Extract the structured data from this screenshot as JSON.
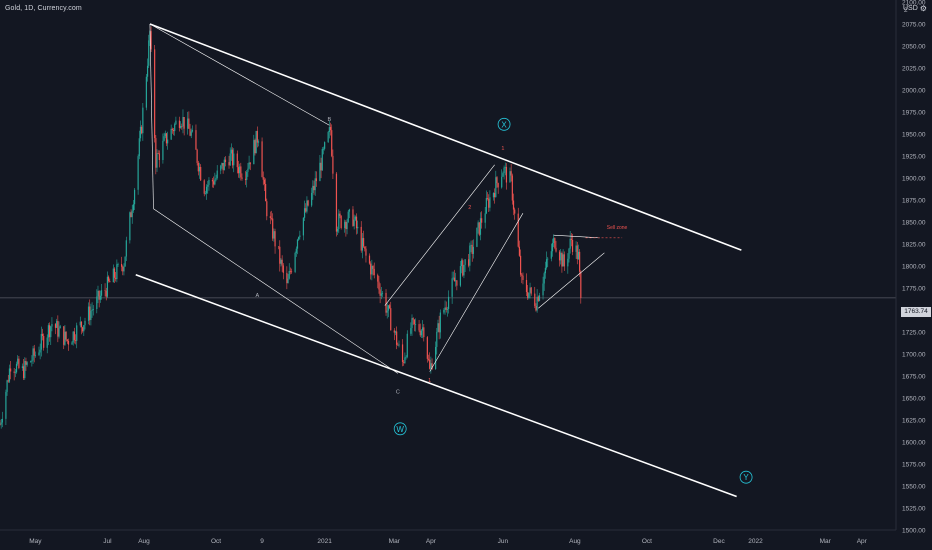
{
  "header": {
    "title": "Gold, 1D, Currency.com"
  },
  "price_axis": {
    "currency_label": "USD"
  },
  "last_price": "1763.74",
  "colors": {
    "background": "#131722",
    "up": "#26a69a",
    "down": "#ef5350",
    "text": "#b2b5be",
    "lines": "#ffffff",
    "wave_label": "#26c6da"
  },
  "chart_data": {
    "type": "candlestick",
    "title": "Gold, 1D, Currency.com",
    "y_axis": {
      "ylim": [
        1500,
        2100
      ],
      "ticks": [
        1500,
        1525,
        1550,
        1575,
        1600,
        1625,
        1650,
        1675,
        1700,
        1725,
        1750,
        1775,
        1800,
        1825,
        1850,
        1875,
        1900,
        1925,
        1950,
        1975,
        2000,
        2025,
        2050,
        2075,
        2100
      ],
      "tick_labels": [
        "1500.00",
        "1525.00",
        "1550.00",
        "1575.00",
        "1600.00",
        "1625.00",
        "1650.00",
        "1675.00",
        "1700.00",
        "1725.00",
        "1750.00",
        "1775.00",
        "1800.00",
        "1825.00",
        "1850.00",
        "1875.00",
        "1900.00",
        "1925.00",
        "1950.00",
        "1975.00",
        "2000.00",
        "2025.00",
        "2050.00",
        "2075.00",
        "2100.00"
      ],
      "top_label": "2"
    },
    "x_axis": {
      "range": [
        "2020-04-01",
        "2022-04-30"
      ],
      "ticks": [
        {
          "date": "2020-05-01",
          "label": "May"
        },
        {
          "date": "2020-07-01",
          "label": "Jul"
        },
        {
          "date": "2020-08-01",
          "label": "Aug"
        },
        {
          "date": "2020-10-01",
          "label": "Oct"
        },
        {
          "date": "2020-11-09",
          "label": "9"
        },
        {
          "date": "2021-01-01",
          "label": "2021"
        },
        {
          "date": "2021-03-01",
          "label": "Mar"
        },
        {
          "date": "2021-04-01",
          "label": "Apr"
        },
        {
          "date": "2021-06-01",
          "label": "Jun"
        },
        {
          "date": "2021-08-01",
          "label": "Aug"
        },
        {
          "date": "2021-10-01",
          "label": "Oct"
        },
        {
          "date": "2021-12-01",
          "label": "Dec"
        },
        {
          "date": "2022-01-01",
          "label": "2022"
        },
        {
          "date": "2022-03-01",
          "label": "Mar"
        },
        {
          "date": "2022-04-01",
          "label": "Apr"
        }
      ]
    },
    "price_path": [
      [
        "2020-04-01",
        1620
      ],
      [
        "2020-04-10",
        1690
      ],
      [
        "2020-04-20",
        1680
      ],
      [
        "2020-05-01",
        1700
      ],
      [
        "2020-05-15",
        1735
      ],
      [
        "2020-05-28",
        1715
      ],
      [
        "2020-06-10",
        1735
      ],
      [
        "2020-06-25",
        1765
      ],
      [
        "2020-07-05",
        1785
      ],
      [
        "2020-07-15",
        1805
      ],
      [
        "2020-07-24",
        1890
      ],
      [
        "2020-07-30",
        1960
      ],
      [
        "2020-08-06",
        2065
      ],
      [
        "2020-08-11",
        1920
      ],
      [
        "2020-08-20",
        1945
      ],
      [
        "2020-09-01",
        1970
      ],
      [
        "2020-09-10",
        1950
      ],
      [
        "2020-09-21",
        1890
      ],
      [
        "2020-10-01",
        1900
      ],
      [
        "2020-10-12",
        1925
      ],
      [
        "2020-10-25",
        1905
      ],
      [
        "2020-11-06",
        1950
      ],
      [
        "2020-11-12",
        1870
      ],
      [
        "2020-11-30",
        1775
      ],
      [
        "2020-12-10",
        1840
      ],
      [
        "2020-12-21",
        1880
      ],
      [
        "2021-01-06",
        1955
      ],
      [
        "2021-01-11",
        1850
      ],
      [
        "2021-01-25",
        1855
      ],
      [
        "2021-02-05",
        1810
      ],
      [
        "2021-02-17",
        1775
      ],
      [
        "2021-03-01",
        1725
      ],
      [
        "2021-03-08",
        1690
      ],
      [
        "2021-03-15",
        1730
      ],
      [
        "2021-03-26",
        1730
      ],
      [
        "2021-03-31",
        1680
      ],
      [
        "2021-04-09",
        1740
      ],
      [
        "2021-04-20",
        1780
      ],
      [
        "2021-05-05",
        1815
      ],
      [
        "2021-05-17",
        1865
      ],
      [
        "2021-06-01",
        1910
      ],
      [
        "2021-06-08",
        1895
      ],
      [
        "2021-06-17",
        1780
      ],
      [
        "2021-06-29",
        1760
      ],
      [
        "2021-07-09",
        1805
      ],
      [
        "2021-07-15",
        1830
      ],
      [
        "2021-07-23",
        1800
      ],
      [
        "2021-07-29",
        1830
      ],
      [
        "2021-08-04",
        1810
      ],
      [
        "2021-08-06",
        1763.74
      ]
    ],
    "wave_labels": [
      {
        "date": "2020-11-05",
        "price": 1765,
        "text": "A"
      },
      {
        "date": "2021-01-05",
        "price": 1965,
        "text": "B"
      },
      {
        "date": "2021-03-04",
        "price": 1655,
        "text": "C"
      },
      {
        "date": "2021-03-31",
        "price": 1668,
        "text": "1"
      },
      {
        "date": "2021-06-01",
        "price": 1932,
        "text": "1"
      },
      {
        "date": "2021-05-04",
        "price": 1865,
        "text": "2"
      },
      {
        "date": "2021-06-02",
        "price": 1961,
        "text": "X",
        "circled": true
      },
      {
        "date": "2021-03-06",
        "price": 1615,
        "text": "W",
        "circled": true
      },
      {
        "date": "2021-12-24",
        "price": 1560,
        "text": "Y",
        "circled": true
      }
    ],
    "annotations": [
      {
        "text": "Sell zone",
        "date": "2021-08-28",
        "price": 1842
      }
    ]
  }
}
